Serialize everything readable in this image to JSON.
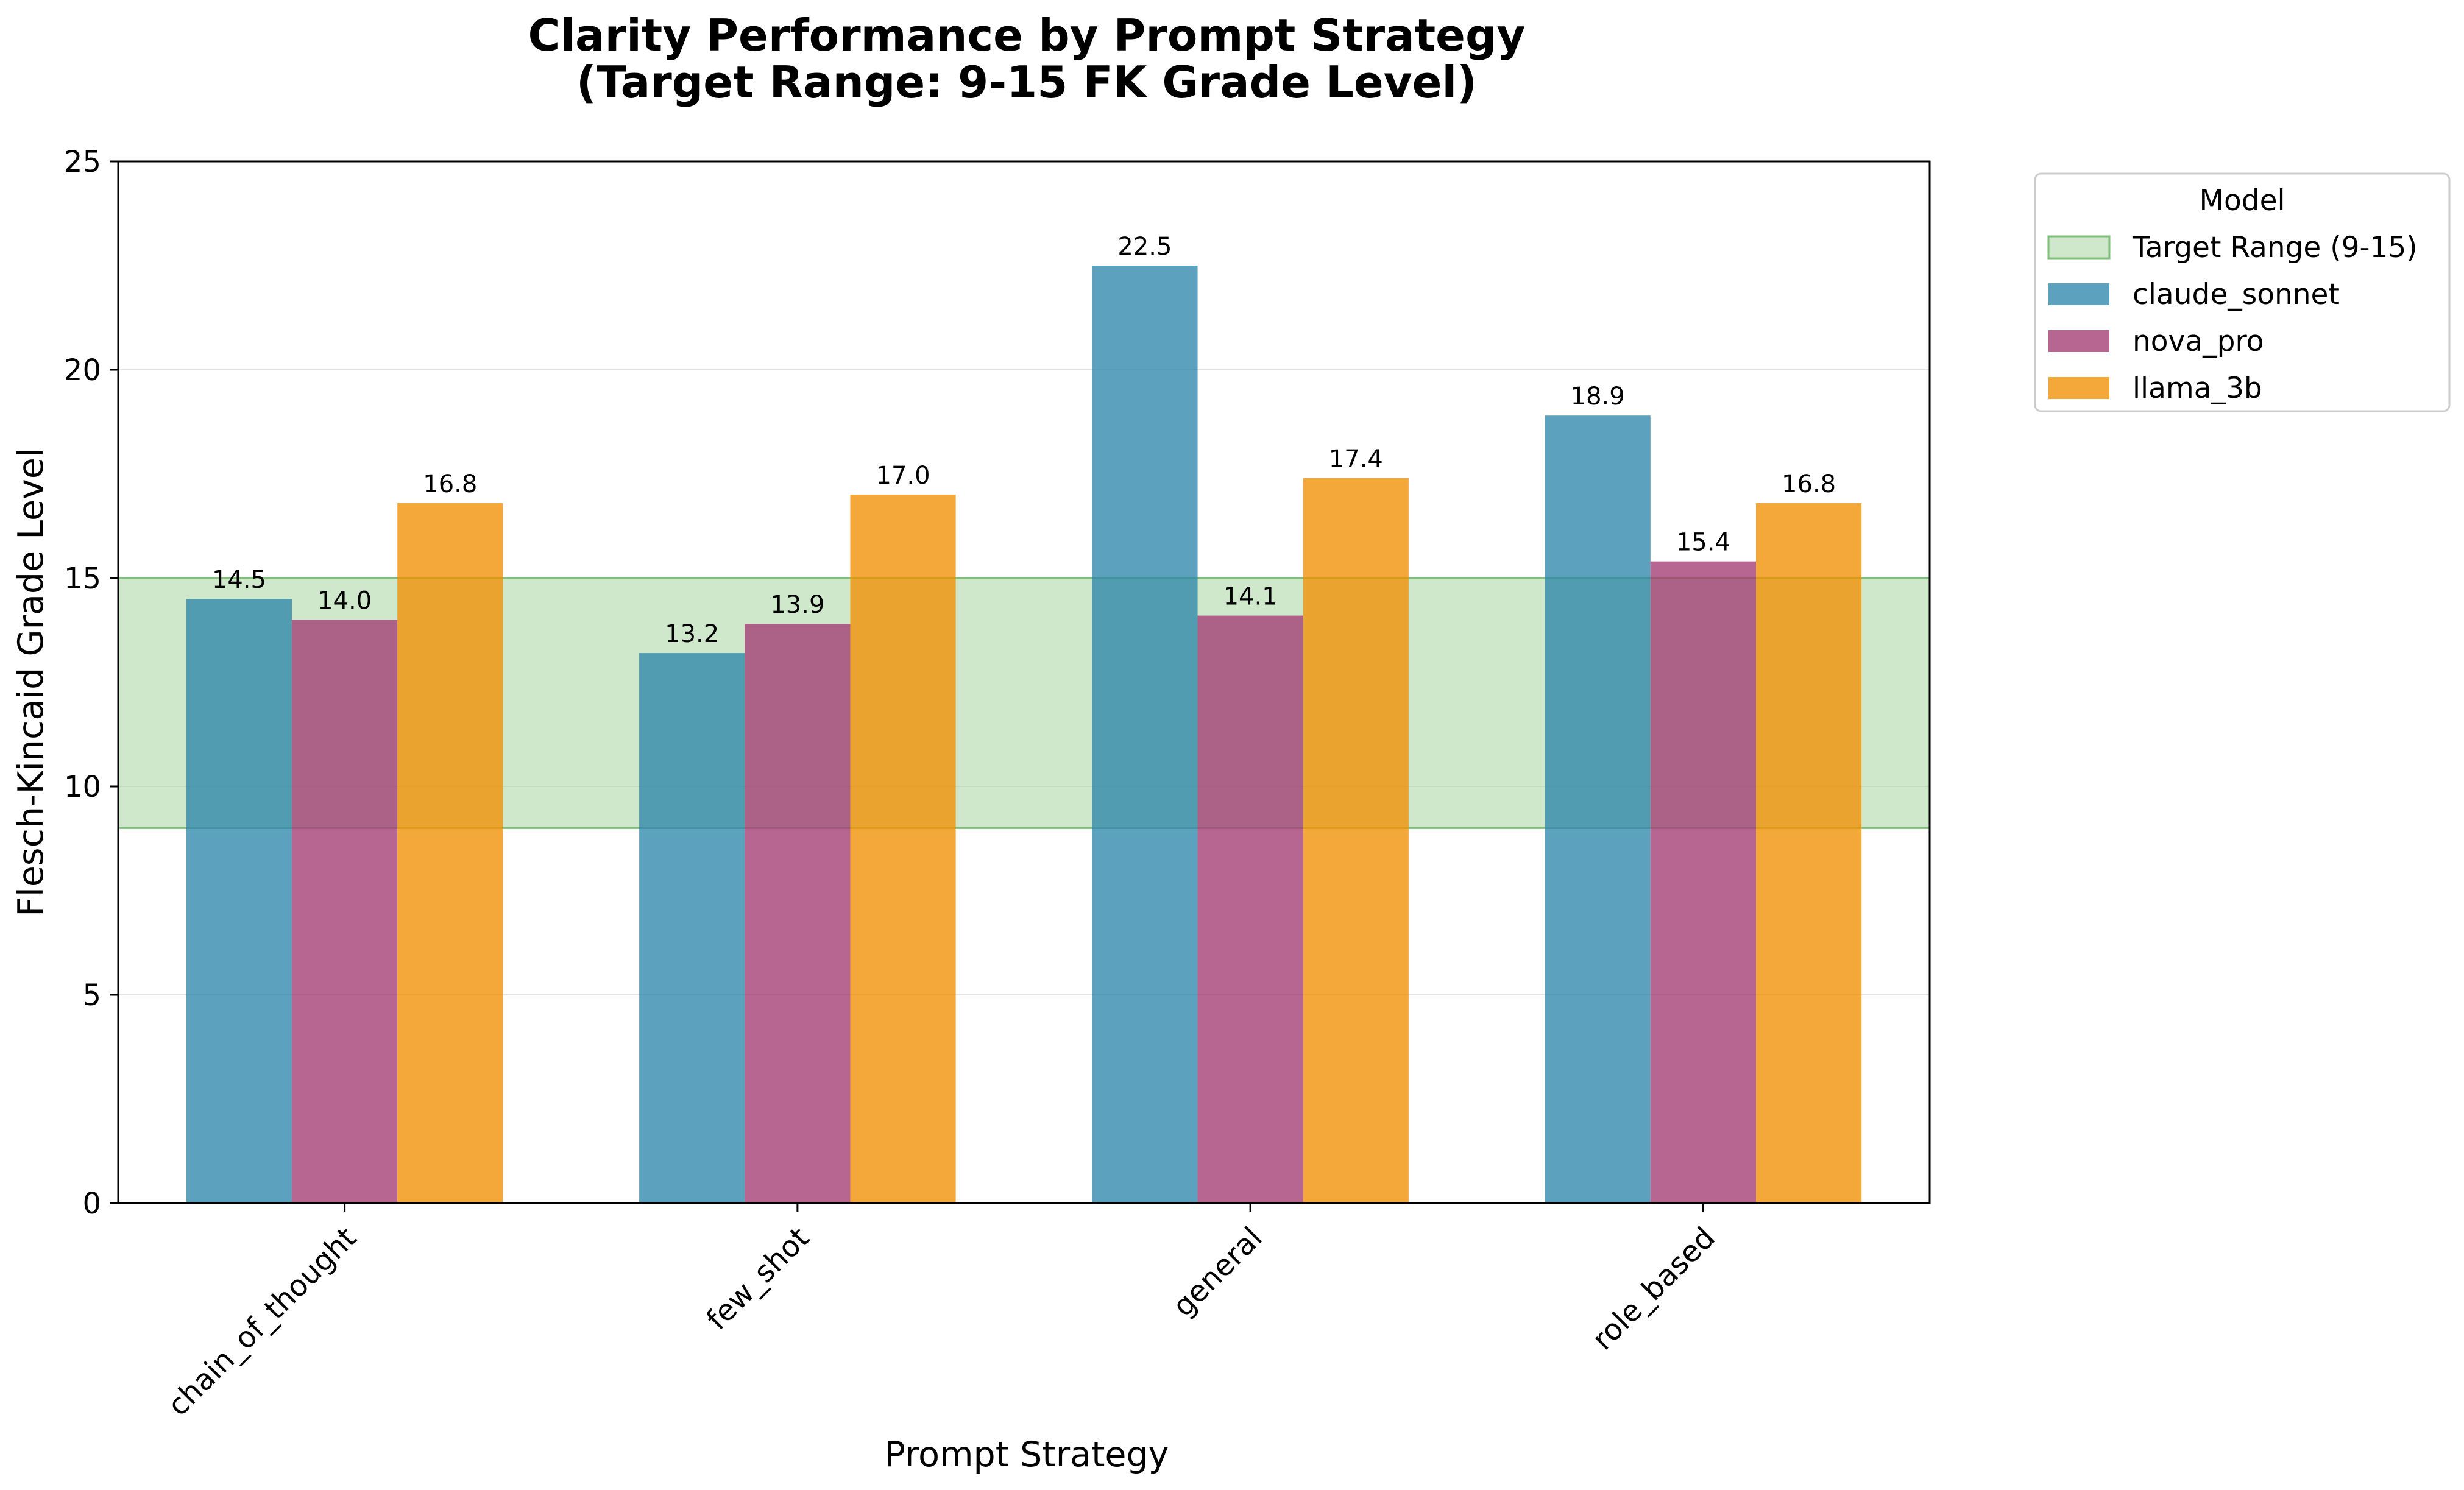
{
  "chart_data": {
    "type": "bar",
    "title_lines": [
      "Clarity Performance by Prompt Strategy",
      "(Target Range: 9-15 FK Grade Level)"
    ],
    "xlabel": "Prompt Strategy",
    "ylabel": "Flesch-Kincaid Grade Level",
    "ylim": [
      0,
      25
    ],
    "yticks": [
      0,
      5,
      10,
      15,
      20,
      25
    ],
    "grid": "y",
    "categories": [
      "chain_of_thought",
      "few_shot",
      "general",
      "role_based"
    ],
    "series": [
      {
        "name": "claude_sonnet",
        "color": "#2E86AB",
        "values": [
          14.5,
          13.2,
          22.5,
          18.9
        ],
        "labels": [
          "14.5",
          "13.2",
          "22.5",
          "18.9"
        ]
      },
      {
        "name": "nova_pro",
        "color": "#A23B72",
        "values": [
          14.0,
          13.9,
          14.1,
          15.4
        ],
        "labels": [
          "14.0",
          "13.9",
          "14.1",
          "15.4"
        ]
      },
      {
        "name": "llama_3b",
        "color": "#F18F01",
        "values": [
          16.8,
          17.0,
          17.4,
          16.8
        ],
        "labels": [
          "16.8",
          "17.0",
          "17.4",
          "16.8"
        ]
      }
    ],
    "target_band": {
      "label": "Target Range (9-15)",
      "min": 9,
      "max": 15,
      "color": "#A8D5A2"
    },
    "legend": {
      "title": "Model",
      "placement": "outside-upper-right"
    }
  }
}
